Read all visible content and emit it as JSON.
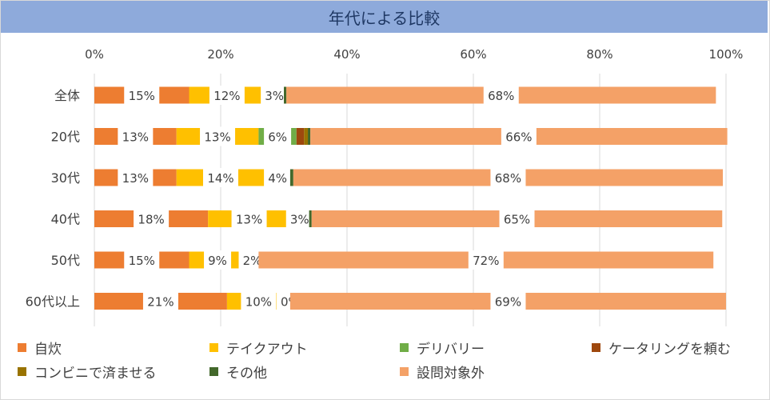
{
  "title": "年代による比較",
  "chart_data": {
    "type": "bar",
    "orientation": "horizontal",
    "stacked": "100%",
    "title": "年代による比較",
    "categories": [
      "全体",
      "20代",
      "30代",
      "40代",
      "50代",
      "60代以上"
    ],
    "x_ticks": [
      "0%",
      "20%",
      "40%",
      "60%",
      "80%",
      "100%"
    ],
    "xlim": [
      0,
      100
    ],
    "grid": true,
    "legend_position": "bottom",
    "series": [
      {
        "name": "自炊",
        "color": "#ed7d31",
        "values": [
          15,
          13,
          13,
          18,
          15,
          21
        ],
        "labels": [
          "15%",
          "13%",
          "13%",
          "18%",
          "15%",
          "21%"
        ]
      },
      {
        "name": "テイクアウト",
        "color": "#ffc000",
        "values": [
          12,
          13,
          14,
          13,
          9,
          10
        ],
        "labels": [
          "12%",
          "13%",
          "14%",
          "13%",
          "9%",
          "10%"
        ]
      },
      {
        "name": "デリバリー",
        "color": "#70ad47",
        "values": [
          3,
          6,
          4,
          3,
          2,
          0
        ],
        "labels": [
          "3%",
          "6%",
          "4%",
          "3%",
          "2%",
          "0%"
        ]
      },
      {
        "name": "ケータリングを頼む",
        "color": "#9e480e",
        "values": [
          0,
          1.2,
          0,
          0,
          0,
          0
        ]
      },
      {
        "name": "コンビニで済ませる",
        "color": "#997300",
        "values": [
          0,
          0.6,
          0,
          0,
          0,
          0
        ]
      },
      {
        "name": "その他",
        "color": "#43682b",
        "values": [
          0.4,
          0.4,
          0.5,
          0.4,
          0,
          0
        ]
      },
      {
        "name": "設問対象外",
        "color": "#f4a167",
        "values": [
          68,
          66,
          68,
          65,
          72,
          69
        ],
        "labels": [
          "68%",
          "66%",
          "68%",
          "65%",
          "72%",
          "69%"
        ]
      }
    ]
  }
}
